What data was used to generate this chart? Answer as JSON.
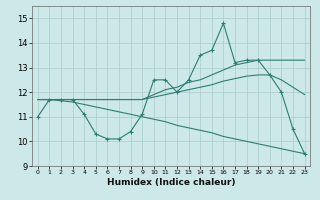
{
  "xlabel": "Humidex (Indice chaleur)",
  "background_color": "#cce8e8",
  "grid_color": "#aacccc",
  "line_color": "#2d7d72",
  "xlim": [
    -0.5,
    23.5
  ],
  "ylim": [
    9,
    15.5
  ],
  "yticks": [
    9,
    10,
    11,
    12,
    13,
    14,
    15
  ],
  "xticks": [
    0,
    1,
    2,
    3,
    4,
    5,
    6,
    7,
    8,
    9,
    10,
    11,
    12,
    13,
    14,
    15,
    16,
    17,
    18,
    19,
    20,
    21,
    22,
    23
  ],
  "main_series": [
    11.0,
    11.7,
    11.7,
    11.7,
    11.1,
    10.3,
    10.1,
    10.1,
    10.4,
    11.1,
    12.5,
    12.5,
    12.0,
    12.5,
    13.5,
    13.7,
    14.8,
    13.2,
    13.3,
    13.3,
    12.7,
    12.0,
    10.5,
    9.5
  ],
  "trend_up1": [
    11.7,
    11.7,
    11.7,
    11.7,
    11.7,
    11.7,
    11.7,
    11.7,
    11.7,
    11.7,
    11.9,
    12.1,
    12.2,
    12.4,
    12.5,
    12.7,
    12.9,
    13.1,
    13.2,
    13.3,
    13.3,
    13.3,
    13.3,
    13.3
  ],
  "trend_up2": [
    11.7,
    11.7,
    11.7,
    11.7,
    11.7,
    11.7,
    11.7,
    11.7,
    11.7,
    11.7,
    11.8,
    11.9,
    12.0,
    12.1,
    12.2,
    12.3,
    12.45,
    12.55,
    12.65,
    12.7,
    12.7,
    12.5,
    12.2,
    11.9
  ],
  "trend_down": [
    11.7,
    11.7,
    11.65,
    11.6,
    11.5,
    11.4,
    11.3,
    11.2,
    11.1,
    11.0,
    10.9,
    10.8,
    10.65,
    10.55,
    10.45,
    10.35,
    10.2,
    10.1,
    10.0,
    9.9,
    9.8,
    9.7,
    9.6,
    9.5
  ]
}
